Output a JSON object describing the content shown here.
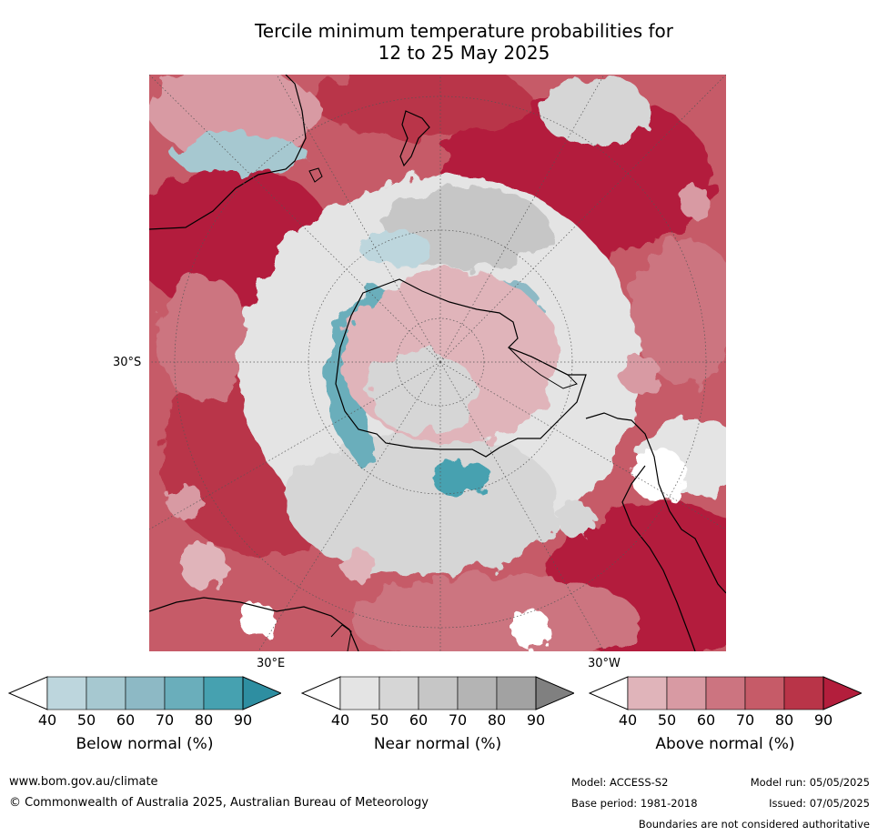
{
  "title": {
    "line1": "Tercile minimum temperature probabilities for",
    "line2": "12 to 25 May 2025"
  },
  "map": {
    "projection": "south-polar-stereographic",
    "labels": {
      "lat": "30°S",
      "lon_east": "30°E",
      "lon_west": "30°W"
    }
  },
  "colorbars": [
    {
      "label": "Below normal (%)",
      "ticks": [
        "40",
        "50",
        "60",
        "70",
        "80",
        "90"
      ],
      "colors": [
        "#ffffff",
        "#bdd6dd",
        "#a6c8d0",
        "#8db9c5",
        "#6aaebb",
        "#46a1b0",
        "#2e8ea1"
      ]
    },
    {
      "label": "Near normal (%)",
      "ticks": [
        "40",
        "50",
        "60",
        "70",
        "80",
        "90"
      ],
      "colors": [
        "#ffffff",
        "#e4e4e4",
        "#d6d6d6",
        "#c6c6c6",
        "#b4b4b4",
        "#a2a2a2",
        "#808080"
      ]
    },
    {
      "label": "Above normal (%)",
      "ticks": [
        "40",
        "50",
        "60",
        "70",
        "80",
        "90"
      ],
      "colors": [
        "#ffffff",
        "#e0b4ba",
        "#d89aa3",
        "#cc7480",
        "#c65b68",
        "#b93448",
        "#b31e3c"
      ]
    }
  ],
  "footer": {
    "website": "www.bom.gov.au/climate",
    "copyright": "© Commonwealth of Australia 2025, Australian Bureau of Meteorology",
    "model": "Model: ACCESS-S2",
    "base_period": "Base period: 1981-2018",
    "model_run": "Model run: 05/05/2025",
    "issued": "Issued: 07/05/2025",
    "disclaimer": "Boundaries are not considered authoritative"
  }
}
